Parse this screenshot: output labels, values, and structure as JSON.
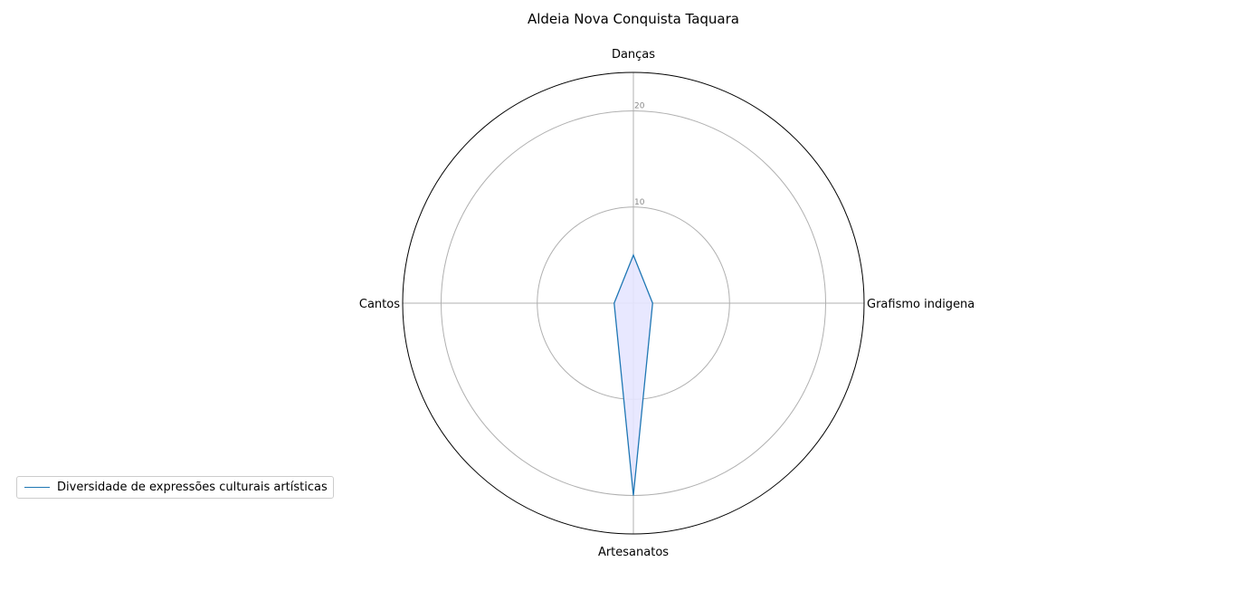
{
  "title": "Aldeia Nova Conquista Taquara",
  "chart_data": {
    "type": "radar",
    "categories": [
      "Danças",
      "Grafismo indigena",
      "Artesanatos",
      "Cantos"
    ],
    "series": [
      {
        "name": "Diversidade de expressões culturais artísticas",
        "values": [
          5,
          2,
          20,
          2
        ]
      }
    ],
    "radial_ticks": [
      "10",
      "20"
    ],
    "rlim": [
      0,
      24
    ],
    "grid": true,
    "legend_position": "lower-left",
    "colors": {
      "line": "#1f77b4",
      "fill": "#e5e5ff",
      "grid": "#b0b0b0",
      "tick_label": "#888888"
    }
  }
}
